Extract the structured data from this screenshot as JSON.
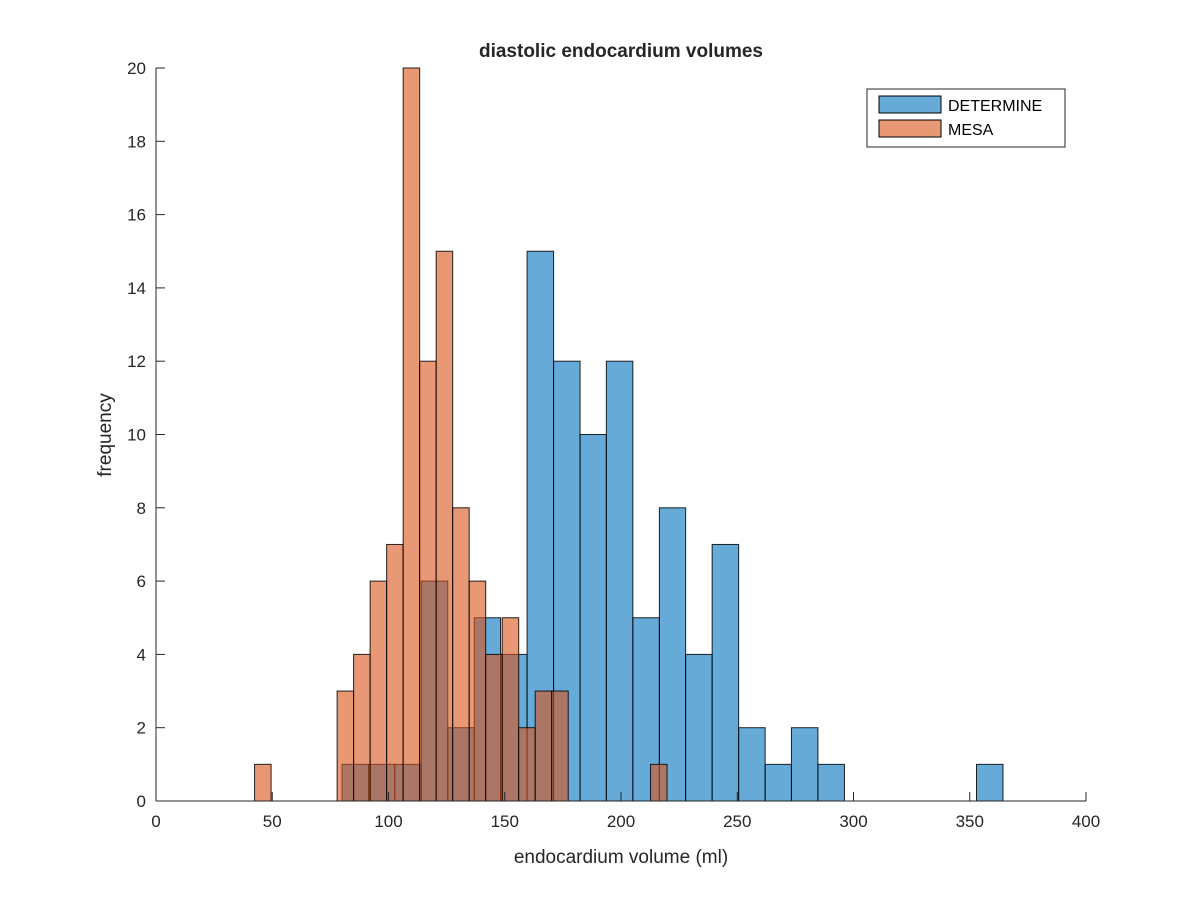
{
  "chart_data": {
    "type": "histogram",
    "title": "diastolic endocardium volumes",
    "xlabel": "endocardium volume (ml)",
    "ylabel": "frequency",
    "xlim": [
      0,
      400
    ],
    "ylim": [
      0,
      20
    ],
    "xticks": [
      0,
      50,
      100,
      150,
      200,
      250,
      300,
      350,
      400
    ],
    "yticks": [
      0,
      2,
      4,
      6,
      8,
      10,
      12,
      14,
      16,
      18,
      20
    ],
    "grid": false,
    "legend_position": "top-right",
    "series": [
      {
        "name": "DETERMINE",
        "color": "#0072BD",
        "face_alpha": 0.6,
        "bins": [
          {
            "x0": 80,
            "x1": 91.4,
            "count": 1
          },
          {
            "x0": 91.4,
            "x1": 102.7,
            "count": 1
          },
          {
            "x0": 102.7,
            "x1": 114.1,
            "count": 1
          },
          {
            "x0": 114.1,
            "x1": 125.5,
            "count": 6
          },
          {
            "x0": 125.5,
            "x1": 136.9,
            "count": 2
          },
          {
            "x0": 136.9,
            "x1": 148.2,
            "count": 5
          },
          {
            "x0": 148.2,
            "x1": 159.6,
            "count": 4
          },
          {
            "x0": 159.6,
            "x1": 171.0,
            "count": 15
          },
          {
            "x0": 171.0,
            "x1": 182.4,
            "count": 12
          },
          {
            "x0": 182.4,
            "x1": 193.7,
            "count": 10
          },
          {
            "x0": 193.7,
            "x1": 205.1,
            "count": 12
          },
          {
            "x0": 205.1,
            "x1": 216.5,
            "count": 5
          },
          {
            "x0": 216.5,
            "x1": 227.8,
            "count": 8
          },
          {
            "x0": 227.8,
            "x1": 239.2,
            "count": 4
          },
          {
            "x0": 239.2,
            "x1": 250.6,
            "count": 7
          },
          {
            "x0": 250.6,
            "x1": 262.0,
            "count": 2
          },
          {
            "x0": 262.0,
            "x1": 273.3,
            "count": 1
          },
          {
            "x0": 273.3,
            "x1": 284.7,
            "count": 2
          },
          {
            "x0": 284.7,
            "x1": 296.1,
            "count": 1
          },
          {
            "x0": 352.9,
            "x1": 364.3,
            "count": 1
          }
        ]
      },
      {
        "name": "MESA",
        "color": "#D95319",
        "face_alpha": 0.6,
        "bins": [
          {
            "x0": 42.4,
            "x1": 49.5,
            "count": 1
          },
          {
            "x0": 77.9,
            "x1": 85.0,
            "count": 3
          },
          {
            "x0": 85.0,
            "x1": 92.1,
            "count": 4
          },
          {
            "x0": 92.1,
            "x1": 99.2,
            "count": 6
          },
          {
            "x0": 99.2,
            "x1": 106.3,
            "count": 7
          },
          {
            "x0": 106.3,
            "x1": 113.4,
            "count": 20
          },
          {
            "x0": 113.4,
            "x1": 120.5,
            "count": 12
          },
          {
            "x0": 120.5,
            "x1": 127.6,
            "count": 15
          },
          {
            "x0": 127.6,
            "x1": 134.7,
            "count": 8
          },
          {
            "x0": 134.7,
            "x1": 141.8,
            "count": 6
          },
          {
            "x0": 141.8,
            "x1": 148.9,
            "count": 4
          },
          {
            "x0": 148.9,
            "x1": 156.0,
            "count": 5
          },
          {
            "x0": 156.0,
            "x1": 163.1,
            "count": 2
          },
          {
            "x0": 163.1,
            "x1": 170.2,
            "count": 3
          },
          {
            "x0": 170.2,
            "x1": 177.3,
            "count": 3
          },
          {
            "x0": 212.7,
            "x1": 219.8,
            "count": 1
          }
        ]
      }
    ]
  }
}
